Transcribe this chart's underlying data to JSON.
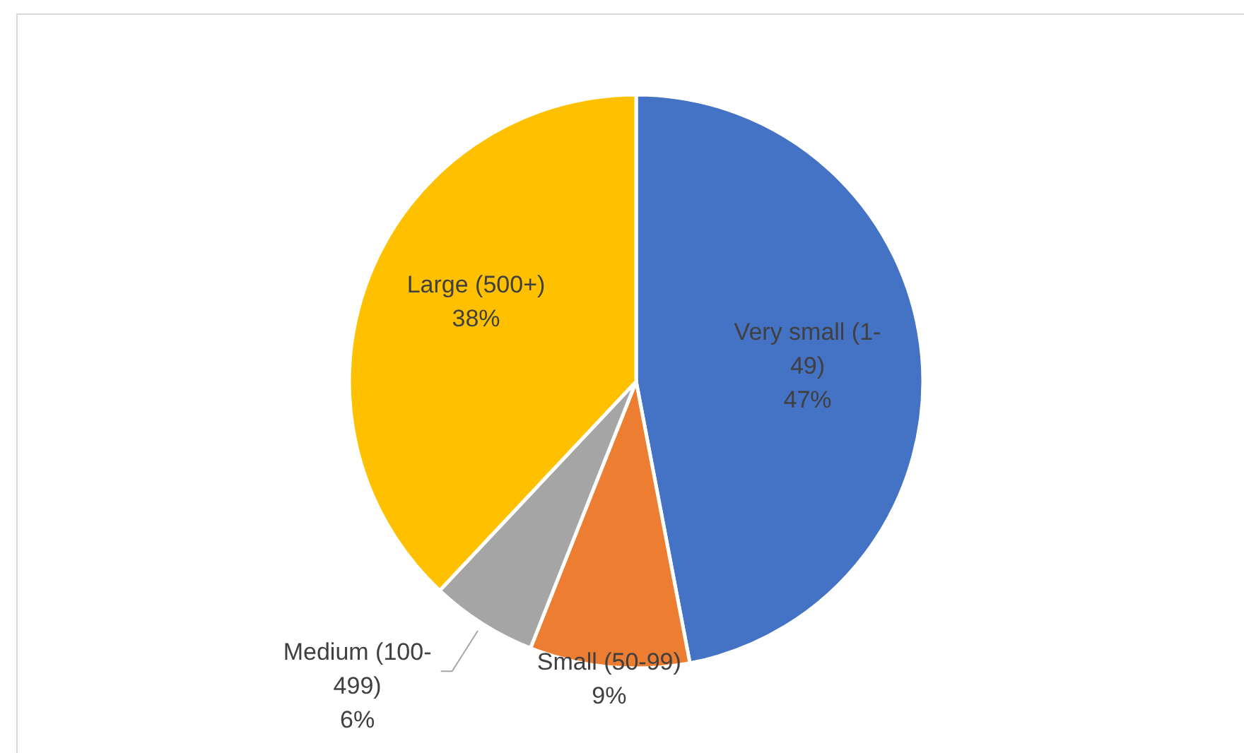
{
  "chart_data": {
    "type": "pie",
    "categories": [
      "Very small (1-49)",
      "Small (50-99)",
      "Medium (100-499)",
      "Large (500+)"
    ],
    "values": [
      47,
      9,
      6,
      38
    ],
    "colors": [
      "#4472c4",
      "#ed7d31",
      "#a5a5a5",
      "#ffc000"
    ],
    "value_labels": [
      "47%",
      "9%",
      "6%",
      "38%"
    ]
  }
}
